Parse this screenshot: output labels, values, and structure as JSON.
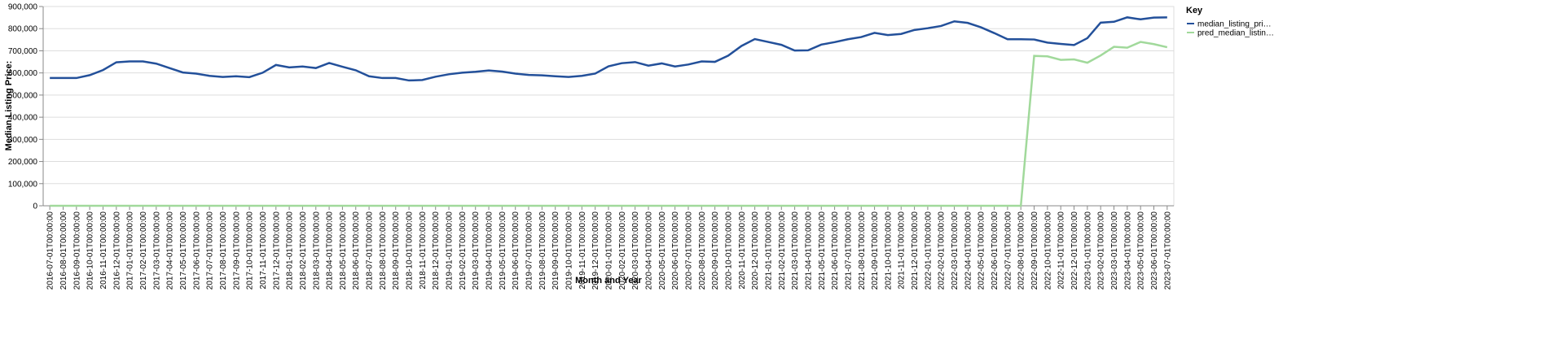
{
  "chart_data": {
    "type": "line",
    "x_label": "Month and Year",
    "y_label": "Median Listing Price:",
    "legend_title": "Key",
    "legend": "top-right",
    "grid": true,
    "categories": [
      "2016-07-01T00:00:00",
      "2016-08-01T00:00:00",
      "2016-09-01T00:00:00",
      "2016-10-01T00:00:00",
      "2016-11-01T00:00:00",
      "2016-12-01T00:00:00",
      "2017-01-01T00:00:00",
      "2017-02-01T00:00:00",
      "2017-03-01T00:00:00",
      "2017-04-01T00:00:00",
      "2017-05-01T00:00:00",
      "2017-06-01T00:00:00",
      "2017-07-01T00:00:00",
      "2017-08-01T00:00:00",
      "2017-09-01T00:00:00",
      "2017-10-01T00:00:00",
      "2017-11-01T00:00:00",
      "2017-12-01T00:00:00",
      "2018-01-01T00:00:00",
      "2018-02-01T00:00:00",
      "2018-03-01T00:00:00",
      "2018-04-01T00:00:00",
      "2018-05-01T00:00:00",
      "2018-06-01T00:00:00",
      "2018-07-01T00:00:00",
      "2018-08-01T00:00:00",
      "2018-09-01T00:00:00",
      "2018-10-01T00:00:00",
      "2018-11-01T00:00:00",
      "2018-12-01T00:00:00",
      "2019-01-01T00:00:00",
      "2019-02-01T00:00:00",
      "2019-03-01T00:00:00",
      "2019-04-01T00:00:00",
      "2019-05-01T00:00:00",
      "2019-06-01T00:00:00",
      "2019-07-01T00:00:00",
      "2019-08-01T00:00:00",
      "2019-09-01T00:00:00",
      "2019-10-01T00:00:00",
      "2019-11-01T00:00:00",
      "2019-12-01T00:00:00",
      "2020-01-01T00:00:00",
      "2020-02-01T00:00:00",
      "2020-03-01T00:00:00",
      "2020-04-01T00:00:00",
      "2020-05-01T00:00:00",
      "2020-06-01T00:00:00",
      "2020-07-01T00:00:00",
      "2020-08-01T00:00:00",
      "2020-09-01T00:00:00",
      "2020-10-01T00:00:00",
      "2020-11-01T00:00:00",
      "2020-12-01T00:00:00",
      "2021-01-01T00:00:00",
      "2021-02-01T00:00:00",
      "2021-03-01T00:00:00",
      "2021-04-01T00:00:00",
      "2021-05-01T00:00:00",
      "2021-06-01T00:00:00",
      "2021-07-01T00:00:00",
      "2021-08-01T00:00:00",
      "2021-09-01T00:00:00",
      "2021-10-01T00:00:00",
      "2021-11-01T00:00:00",
      "2021-12-01T00:00:00",
      "2022-01-01T00:00:00",
      "2022-02-01T00:00:00",
      "2022-03-01T00:00:00",
      "2022-04-01T00:00:00",
      "2022-05-01T00:00:00",
      "2022-06-01T00:00:00",
      "2022-07-01T00:00:00",
      "2022-08-01T00:00:00",
      "2022-09-01T00:00:00",
      "2022-10-01T00:00:00",
      "2022-11-01T00:00:00",
      "2022-12-01T00:00:00",
      "2023-01-01T00:00:00",
      "2023-02-01T00:00:00",
      "2023-03-01T00:00:00",
      "2023-04-01T00:00:00",
      "2023-05-01T00:00:00",
      "2023-06-01T00:00:00",
      "2023-07-01T00:00:00"
    ],
    "series": [
      {
        "name": "median_listing_pri…",
        "color": "#23509a",
        "values": [
          577000,
          577000,
          577000,
          590000,
          613000,
          648000,
          652000,
          652000,
          642000,
          622000,
          602000,
          597000,
          587000,
          582000,
          585000,
          581000,
          601000,
          636000,
          625000,
          629000,
          622000,
          645000,
          628000,
          612000,
          585000,
          577000,
          577000,
          566000,
          568000,
          583000,
          594000,
          601000,
          605000,
          611000,
          606000,
          597000,
          591000,
          589000,
          585000,
          582000,
          587000,
          597000,
          630000,
          644000,
          649000,
          633000,
          643000,
          629000,
          638000,
          652000,
          650000,
          678000,
          722000,
          753000,
          740000,
          727000,
          701000,
          702000,
          728000,
          739000,
          752000,
          762000,
          781000,
          771000,
          776000,
          794000,
          802000,
          812000,
          833000,
          826000,
          806000,
          780000,
          752000,
          752000,
          751000,
          737000,
          731000,
          726000,
          757000,
          827000,
          831000,
          851000,
          842000,
          850000,
          851000
        ]
      },
      {
        "name": "pred_median_listin…",
        "color": "#a1d99b",
        "values": [
          0,
          0,
          0,
          0,
          0,
          0,
          0,
          0,
          0,
          0,
          0,
          0,
          0,
          0,
          0,
          0,
          0,
          0,
          0,
          0,
          0,
          0,
          0,
          0,
          0,
          0,
          0,
          0,
          0,
          0,
          0,
          0,
          0,
          0,
          0,
          0,
          0,
          0,
          0,
          0,
          0,
          0,
          0,
          0,
          0,
          0,
          0,
          0,
          0,
          0,
          0,
          0,
          0,
          0,
          0,
          0,
          0,
          0,
          0,
          0,
          0,
          0,
          0,
          0,
          0,
          0,
          0,
          0,
          0,
          0,
          0,
          0,
          0,
          0,
          677000,
          675000,
          659000,
          661000,
          646000,
          679000,
          718000,
          714000,
          740000,
          730000,
          716000
        ]
      }
    ],
    "ylim": [
      0,
      900000
    ],
    "yticks": [
      0,
      {
        "value": 100000,
        "label": "100,000"
      },
      {
        "value": 200000,
        "label": "200,000"
      },
      {
        "value": 300000,
        "label": "300,000"
      },
      {
        "value": 400000,
        "label": "400,000"
      },
      {
        "value": 500000,
        "label": "500,000"
      },
      {
        "value": 600000,
        "label": "600,000"
      },
      {
        "value": 700000,
        "label": "700,000"
      },
      {
        "value": 800000,
        "label": "800,000"
      },
      {
        "value": 900000,
        "label": "900,000"
      }
    ]
  }
}
